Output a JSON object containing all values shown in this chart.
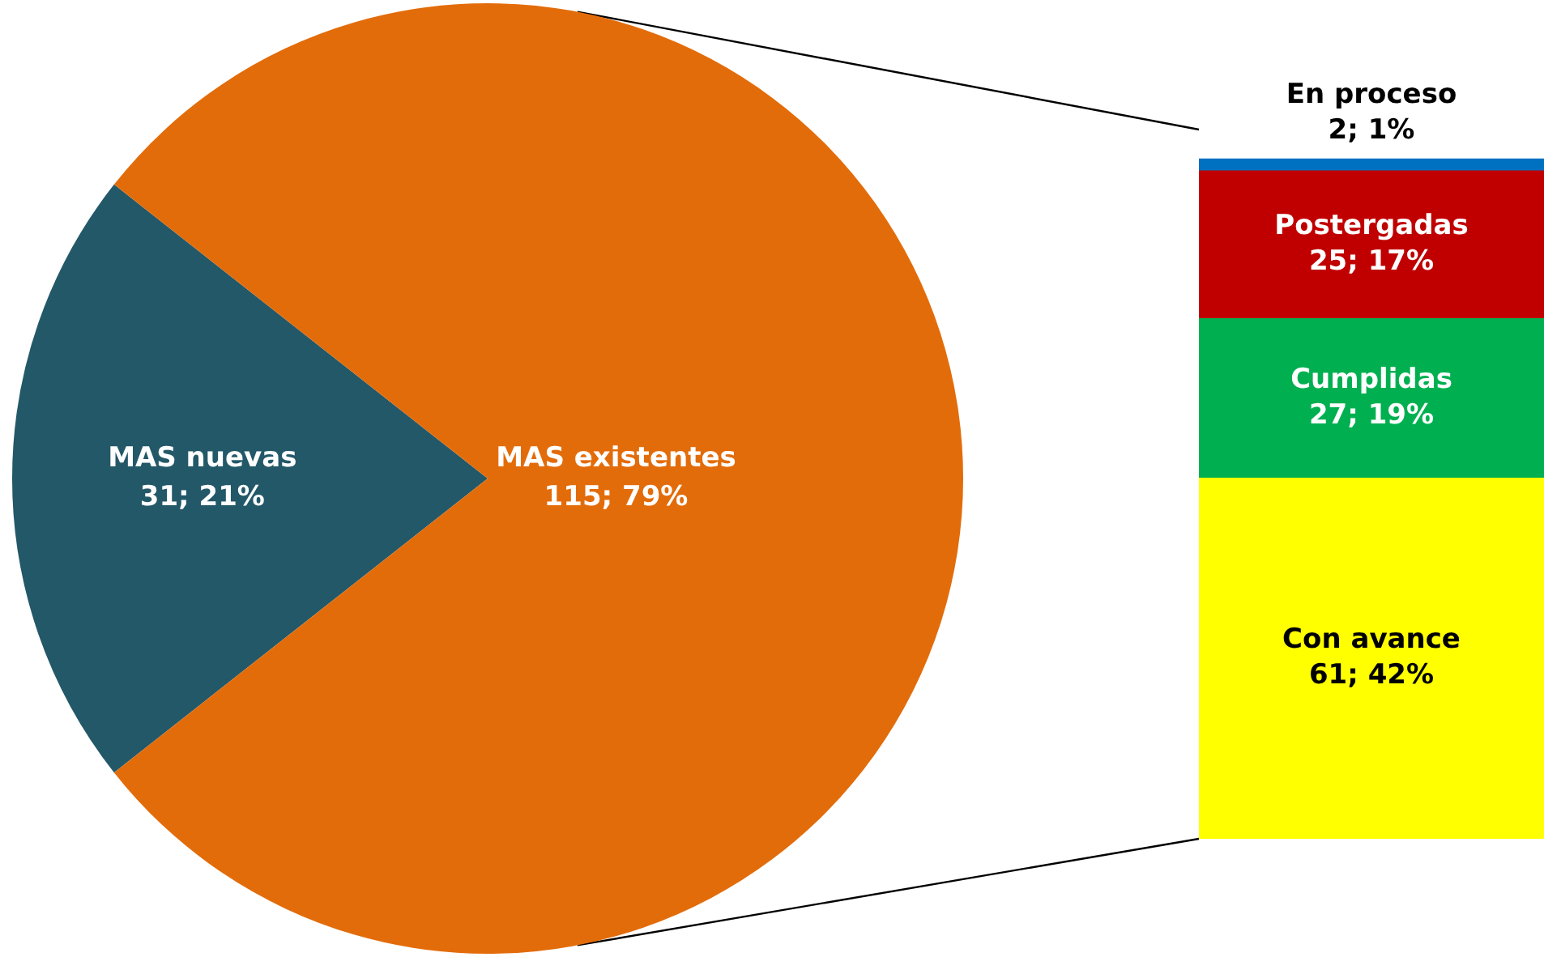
{
  "chart_data": [
    {
      "type": "pie",
      "categories": [
        "MAS nuevas",
        "MAS existentes"
      ],
      "values": [
        31,
        115
      ],
      "colors": [
        "#235868",
        "#e36c0a"
      ],
      "value_labels": [
        "31; 21%",
        "115; 79%"
      ],
      "legend": false
    },
    {
      "type": "bar",
      "stacked": true,
      "categories": [
        null
      ],
      "legend": false,
      "series": [
        {
          "name": "Con avance",
          "color": "#ffff00",
          "values": [
            61
          ],
          "value_labels": [
            "61; 42%"
          ]
        },
        {
          "name": "Cumplidas",
          "color": "#00b050",
          "values": [
            27
          ],
          "value_labels": [
            "27; 19%"
          ]
        },
        {
          "name": "Postergadas",
          "color": "#c00000",
          "values": [
            25
          ],
          "value_labels": [
            "25; 17%"
          ]
        },
        {
          "name": "En proceso",
          "color": "#0070c0",
          "values": [
            2
          ],
          "value_labels": [
            "2; 1%"
          ]
        }
      ]
    }
  ]
}
